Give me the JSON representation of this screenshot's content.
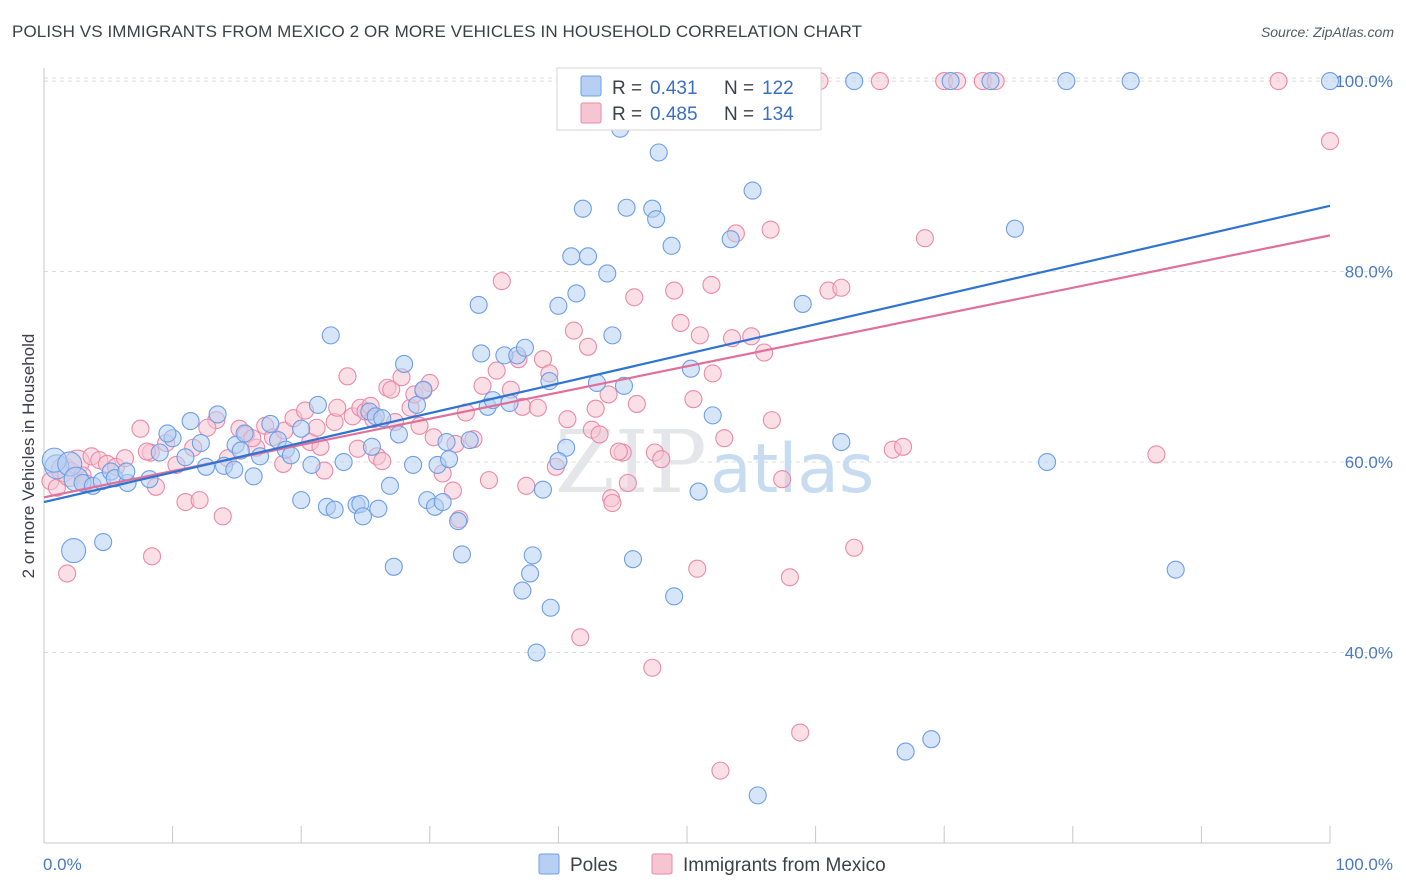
{
  "title": "POLISH VS IMMIGRANTS FROM MEXICO 2 OR MORE VEHICLES IN HOUSEHOLD CORRELATION CHART",
  "source": "Source: ZipAtlas.com",
  "colors": {
    "poles": "#6e9fe6",
    "poles_fill": "#b7cff3",
    "poles_line": "#2f74d0",
    "mexico": "#ea8aa8",
    "mexico_fill": "#f6c5d4",
    "mexico_line": "#e0709a",
    "tick_label": "#4a78c4",
    "grid": "#dcdcdc"
  },
  "legend": {
    "poles": {
      "r_label": "R = ",
      "r_value": "0.431",
      "n_label": "N = ",
      "n_value": "122"
    },
    "mexico": {
      "r_label": "R = ",
      "r_value": "0.485",
      "n_label": "N = ",
      "n_value": "134"
    }
  },
  "watermark": {
    "zip": "ZIP",
    "atlas": "atlas"
  },
  "chart_data": {
    "type": "scatter",
    "title": "POLISH VS IMMIGRANTS FROM MEXICO 2 OR MORE VEHICLES IN HOUSEHOLD CORRELATION CHART",
    "xlabel": "",
    "ylabel": "2 or more Vehicles in Household",
    "x_tick_labels": [
      "0.0%",
      "100.0%"
    ],
    "y_tick_labels": [
      "100.0%",
      "80.0%",
      "60.0%",
      "40.0%"
    ],
    "y_ticks": [
      100,
      80,
      60,
      40
    ],
    "xlim": [
      0,
      100
    ],
    "ylim": [
      22,
      103
    ],
    "grid": true,
    "legend_position": "top-center",
    "series": [
      {
        "name": "Poles",
        "R": 0.431,
        "N": 122,
        "trend": [
          [
            0,
            55.8
          ],
          [
            100,
            86.9
          ]
        ],
        "points": [
          [
            1,
            59.5
          ],
          [
            0.8,
            60.2
          ],
          [
            2,
            59.8
          ],
          [
            2.5,
            58.2
          ],
          [
            3,
            57.8
          ],
          [
            3.8,
            57.5
          ],
          [
            4.5,
            58.0
          ],
          [
            5.2,
            59.0
          ],
          [
            5.5,
            58.3
          ],
          [
            6.5,
            57.8
          ],
          [
            6.4,
            59.0
          ],
          [
            8.2,
            58.2
          ],
          [
            9.0,
            61.0
          ],
          [
            10.0,
            62.5
          ],
          [
            9.6,
            63.0
          ],
          [
            11.0,
            60.5
          ],
          [
            11.4,
            64.3
          ],
          [
            12.2,
            62.0
          ],
          [
            12.6,
            59.5
          ],
          [
            13.5,
            65.0
          ],
          [
            14.0,
            59.6
          ],
          [
            14.9,
            61.8
          ],
          [
            15.3,
            61.2
          ],
          [
            15.6,
            63.0
          ],
          [
            16.3,
            58.5
          ],
          [
            16.8,
            60.6
          ],
          [
            17.6,
            64.0
          ],
          [
            18.2,
            62.3
          ],
          [
            18.8,
            61.3
          ],
          [
            19.2,
            60.7
          ],
          [
            20.0,
            63.5
          ],
          [
            20.0,
            56.0
          ],
          [
            20.8,
            59.7
          ],
          [
            21.3,
            66.0
          ],
          [
            22.0,
            55.3
          ],
          [
            22.6,
            55.0
          ],
          [
            22.3,
            73.3
          ],
          [
            23.3,
            60.0
          ],
          [
            24.3,
            55.5
          ],
          [
            24.6,
            55.6
          ],
          [
            24.8,
            54.3
          ],
          [
            25.3,
            65.3
          ],
          [
            25.5,
            61.6
          ],
          [
            25.8,
            64.8
          ],
          [
            26.3,
            64.6
          ],
          [
            26.9,
            57.5
          ],
          [
            27.2,
            49.0
          ],
          [
            27.6,
            62.9
          ],
          [
            28.0,
            70.3
          ],
          [
            28.7,
            59.7
          ],
          [
            29.0,
            66.0
          ],
          [
            29.5,
            67.6
          ],
          [
            29.8,
            56.0
          ],
          [
            30.4,
            55.3
          ],
          [
            30.6,
            59.7
          ],
          [
            31.3,
            62.1
          ],
          [
            31.5,
            60.3
          ],
          [
            32.2,
            53.8
          ],
          [
            32.5,
            50.3
          ],
          [
            33.1,
            62.3
          ],
          [
            33.8,
            76.5
          ],
          [
            34.0,
            71.4
          ],
          [
            34.5,
            65.8
          ],
          [
            34.9,
            66.5
          ],
          [
            35.8,
            71.2
          ],
          [
            36.2,
            66.2
          ],
          [
            36.8,
            71.2
          ],
          [
            37.4,
            72.0
          ],
          [
            37.2,
            46.5
          ],
          [
            37.8,
            48.3
          ],
          [
            38.3,
            40.0
          ],
          [
            38.8,
            57.1
          ],
          [
            39.3,
            68.5
          ],
          [
            39.4,
            44.7
          ],
          [
            40.0,
            76.4
          ],
          [
            40.6,
            61.5
          ],
          [
            41.0,
            81.6
          ],
          [
            41.4,
            77.7
          ],
          [
            41.9,
            86.6
          ],
          [
            42.3,
            81.6
          ],
          [
            43.0,
            68.3
          ],
          [
            43.8,
            79.8
          ],
          [
            44.2,
            73.3
          ],
          [
            44.8,
            95.0
          ],
          [
            45.3,
            86.7
          ],
          [
            45.8,
            49.8
          ],
          [
            46.2,
            100
          ],
          [
            47.3,
            86.6
          ],
          [
            47.6,
            85.5
          ],
          [
            47.8,
            92.5
          ],
          [
            48.8,
            82.7
          ],
          [
            49.0,
            45.9
          ],
          [
            49.0,
            100
          ],
          [
            50.3,
            69.8
          ],
          [
            50.9,
            56.9
          ],
          [
            51.3,
            100
          ],
          [
            52.0,
            64.9
          ],
          [
            53.4,
            83.4
          ],
          [
            55.1,
            88.5
          ],
          [
            55.5,
            25.0
          ],
          [
            59.0,
            76.6
          ],
          [
            62.0,
            62.1
          ],
          [
            63.0,
            100
          ],
          [
            67.0,
            29.6
          ],
          [
            69.0,
            30.9
          ],
          [
            70.5,
            100
          ],
          [
            73.6,
            100
          ],
          [
            75.5,
            84.5
          ],
          [
            78.0,
            60.0
          ],
          [
            79.5,
            100
          ],
          [
            84.5,
            100
          ],
          [
            88.0,
            48.7
          ],
          [
            100,
            100
          ],
          [
            4.6,
            51.6
          ],
          [
            2.3,
            50.7
          ],
          [
            14.8,
            59.2
          ],
          [
            31.0,
            55.8
          ],
          [
            45.1,
            68.0
          ],
          [
            38.0,
            50.2
          ],
          [
            26.0,
            55.1
          ],
          [
            40.0,
            60.1
          ]
        ]
      },
      {
        "name": "Immigrants from Mexico",
        "R": 0.485,
        "N": 134,
        "trend": [
          [
            0,
            56.3
          ],
          [
            100,
            83.8
          ]
        ],
        "points": [
          [
            0.5,
            58.0
          ],
          [
            1.0,
            57.3
          ],
          [
            1.5,
            59.2
          ],
          [
            2.0,
            58.7
          ],
          [
            1.8,
            48.3
          ],
          [
            2.6,
            60.0
          ],
          [
            3.0,
            58.6
          ],
          [
            3.7,
            60.6
          ],
          [
            4.3,
            60.2
          ],
          [
            4.9,
            59.8
          ],
          [
            5.6,
            59.5
          ],
          [
            6.3,
            60.4
          ],
          [
            7.5,
            63.5
          ],
          [
            8.3,
            61.0
          ],
          [
            8.7,
            57.4
          ],
          [
            8.4,
            50.1
          ],
          [
            9.5,
            62.0
          ],
          [
            10.3,
            59.7
          ],
          [
            11.0,
            55.8
          ],
          [
            11.6,
            61.5
          ],
          [
            12.1,
            56.0
          ],
          [
            13.4,
            64.4
          ],
          [
            13.9,
            54.3
          ],
          [
            14.3,
            60.4
          ],
          [
            15.2,
            63.5
          ],
          [
            15.7,
            62.9
          ],
          [
            16.5,
            61.5
          ],
          [
            17.2,
            63.8
          ],
          [
            17.8,
            62.6
          ],
          [
            18.7,
            63.3
          ],
          [
            19.4,
            64.6
          ],
          [
            20.3,
            65.4
          ],
          [
            20.7,
            62.1
          ],
          [
            21.2,
            63.6
          ],
          [
            21.8,
            59.1
          ],
          [
            22.6,
            64.2
          ],
          [
            22.8,
            65.7
          ],
          [
            23.6,
            69.0
          ],
          [
            24.0,
            64.8
          ],
          [
            24.6,
            65.7
          ],
          [
            25.0,
            65.3
          ],
          [
            25.4,
            65.9
          ],
          [
            25.9,
            60.6
          ],
          [
            26.3,
            60.1
          ],
          [
            26.7,
            67.8
          ],
          [
            27.0,
            67.6
          ],
          [
            27.3,
            64.2
          ],
          [
            27.8,
            68.9
          ],
          [
            28.5,
            65.7
          ],
          [
            28.8,
            67.1
          ],
          [
            29.2,
            63.8
          ],
          [
            30.0,
            68.3
          ],
          [
            30.3,
            62.6
          ],
          [
            31.0,
            58.8
          ],
          [
            31.8,
            57.0
          ],
          [
            32.3,
            54.0
          ],
          [
            32.8,
            65.2
          ],
          [
            33.4,
            62.4
          ],
          [
            34.1,
            68.0
          ],
          [
            34.6,
            58.1
          ],
          [
            35.2,
            69.6
          ],
          [
            35.6,
            79.0
          ],
          [
            36.3,
            67.6
          ],
          [
            37.2,
            65.8
          ],
          [
            37.5,
            57.5
          ],
          [
            38.4,
            65.7
          ],
          [
            38.8,
            70.8
          ],
          [
            39.3,
            69.3
          ],
          [
            39.8,
            59.5
          ],
          [
            40.7,
            64.5
          ],
          [
            41.2,
            73.8
          ],
          [
            42.3,
            72.1
          ],
          [
            42.6,
            63.4
          ],
          [
            42.9,
            65.6
          ],
          [
            43.2,
            62.9
          ],
          [
            43.9,
            67.1
          ],
          [
            44.1,
            56.2
          ],
          [
            44.2,
            55.7
          ],
          [
            45.0,
            61.0
          ],
          [
            45.4,
            57.8
          ],
          [
            45.9,
            77.3
          ],
          [
            46.1,
            66.1
          ],
          [
            46.8,
            100
          ],
          [
            47.3,
            38.4
          ],
          [
            47.5,
            61.0
          ],
          [
            48.0,
            60.3
          ],
          [
            49.5,
            74.6
          ],
          [
            49.0,
            78.0
          ],
          [
            50.5,
            66.6
          ],
          [
            50.8,
            48.8
          ],
          [
            51.0,
            73.3
          ],
          [
            52.0,
            69.3
          ],
          [
            51.9,
            78.6
          ],
          [
            52.6,
            27.6
          ],
          [
            53.5,
            73.0
          ],
          [
            53.8,
            84.0
          ],
          [
            54.0,
            100
          ],
          [
            55.0,
            73.2
          ],
          [
            56.0,
            71.5
          ],
          [
            56.5,
            84.4
          ],
          [
            56.6,
            64.4
          ],
          [
            57.4,
            58.2
          ],
          [
            58.0,
            47.9
          ],
          [
            58.8,
            31.6
          ],
          [
            59.5,
            97.0
          ],
          [
            60.3,
            100
          ],
          [
            61.0,
            78.0
          ],
          [
            62.0,
            78.3
          ],
          [
            63.0,
            51.0
          ],
          [
            65.0,
            100
          ],
          [
            66.0,
            61.3
          ],
          [
            66.8,
            61.6
          ],
          [
            68.5,
            83.5
          ],
          [
            70.0,
            100
          ],
          [
            71.0,
            100
          ],
          [
            73.0,
            100
          ],
          [
            74.0,
            100
          ],
          [
            86.5,
            60.8
          ],
          [
            96.0,
            100
          ],
          [
            100,
            93.7
          ],
          [
            21.5,
            61.6
          ],
          [
            18.6,
            59.8
          ],
          [
            12.7,
            63.6
          ],
          [
            32.0,
            61.9
          ],
          [
            44.7,
            61.1
          ],
          [
            41.7,
            41.6
          ],
          [
            36.9,
            70.8
          ],
          [
            29.5,
            67.5
          ],
          [
            24.4,
            61.4
          ],
          [
            16.2,
            62.5
          ],
          [
            8.0,
            61.1
          ],
          [
            3.2,
            57.8
          ],
          [
            52.9,
            62.5
          ],
          [
            25.6,
            64.5
          ]
        ]
      }
    ]
  }
}
